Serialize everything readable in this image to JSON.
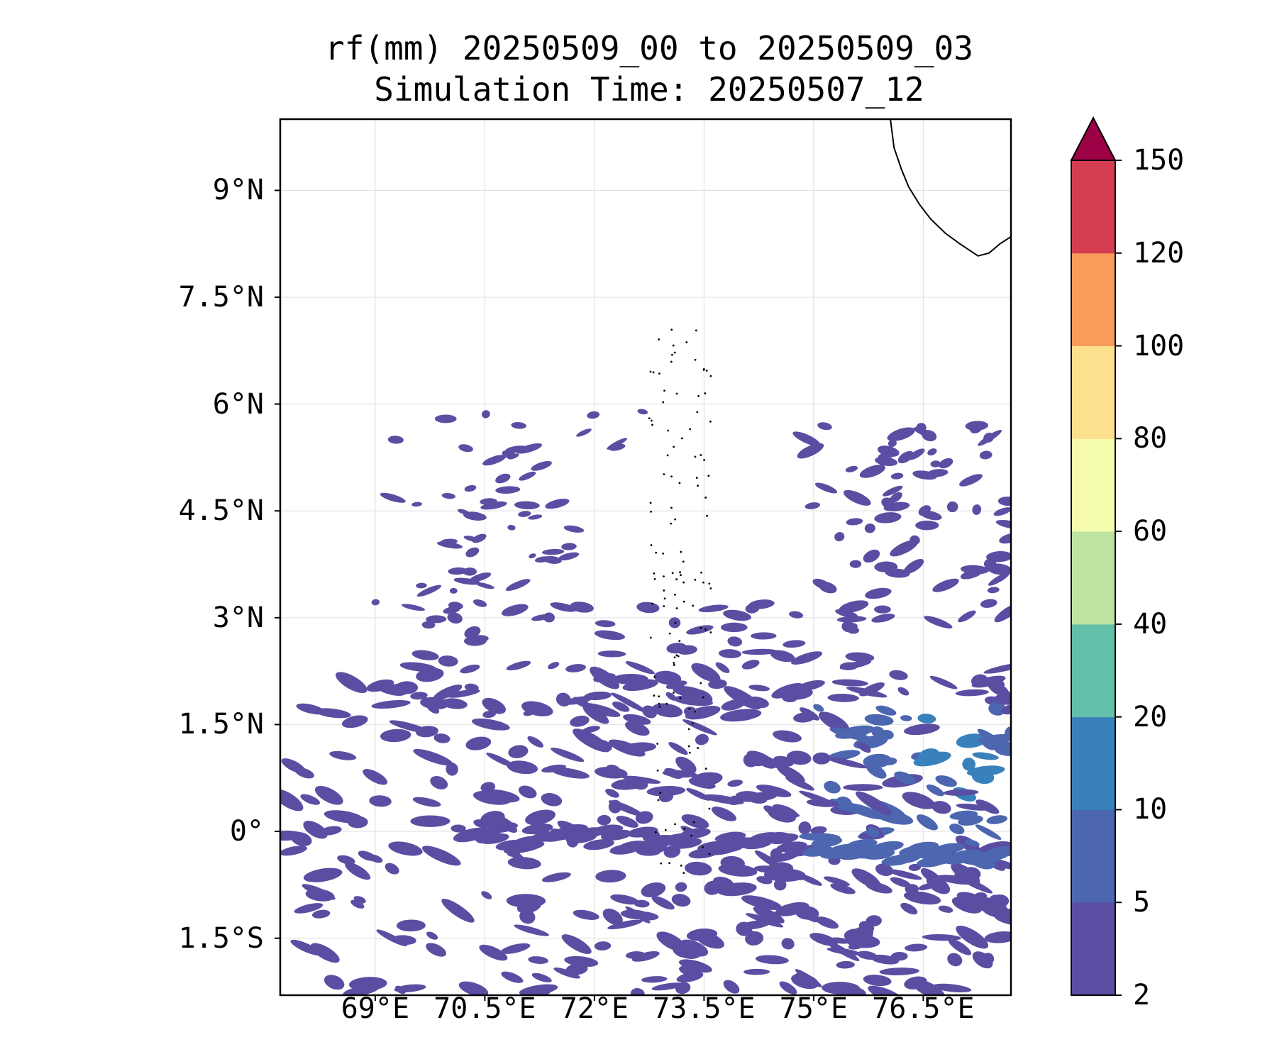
{
  "title": {
    "line1": "rf(mm) 20250509_00 to 20250509_03",
    "line2": "Simulation Time: 20250507_12"
  },
  "map": {
    "lon_range": [
      67.7,
      77.7
    ],
    "lat_range": [
      -2.3,
      10.0
    ],
    "lat_ticks": [
      {
        "value": 9.0,
        "label": "9°N"
      },
      {
        "value": 7.5,
        "label": "7.5°N"
      },
      {
        "value": 6.0,
        "label": "6°N"
      },
      {
        "value": 4.5,
        "label": "4.5°N"
      },
      {
        "value": 3.0,
        "label": "3°N"
      },
      {
        "value": 1.5,
        "label": "1.5°N"
      },
      {
        "value": 0.0,
        "label": "0°"
      },
      {
        "value": -1.5,
        "label": "1.5°S"
      }
    ],
    "lon_ticks": [
      {
        "value": 69.0,
        "label": "69°E"
      },
      {
        "value": 70.5,
        "label": "70.5°E"
      },
      {
        "value": 72.0,
        "label": "72°E"
      },
      {
        "value": 73.5,
        "label": "73.5°E"
      },
      {
        "value": 75.0,
        "label": "75°E"
      },
      {
        "value": 76.5,
        "label": "76.5°E"
      }
    ],
    "grid": true,
    "coastline_color": "#000000"
  },
  "colorbar": {
    "levels": [
      "2",
      "5",
      "10",
      "20",
      "40",
      "60",
      "80",
      "100",
      "120",
      "150"
    ],
    "colors": [
      "#5a4ea3",
      "#4c66b0",
      "#3981bb",
      "#64bfa9",
      "#bde3a1",
      "#f4fbad",
      "#fde08d",
      "#f99c59",
      "#d43d4f"
    ],
    "extend_color": "#9b0144",
    "extend": "max"
  },
  "precip_field": {
    "type": "filled-contour",
    "variable": "rf(mm)",
    "dominant_levels": [
      "2-5",
      "5-10",
      "10-20"
    ],
    "region_note": "Widespread scattered rainfall bands south of 3°N, heaviest between 0° and 1.5°N east of 75°E; scattered cells north-west around 4.5–6°N"
  }
}
